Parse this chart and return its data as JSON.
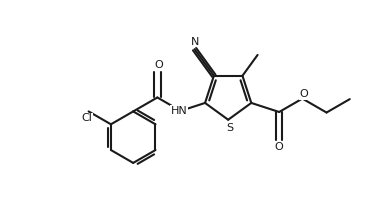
{
  "bg_color": "#ffffff",
  "lc": "#1a1a1a",
  "lw": 1.5,
  "figsize": [
    3.92,
    1.98
  ],
  "dpi": 100,
  "xlim": [
    -0.5,
    9.5
  ],
  "ylim": [
    -0.3,
    5.2
  ]
}
